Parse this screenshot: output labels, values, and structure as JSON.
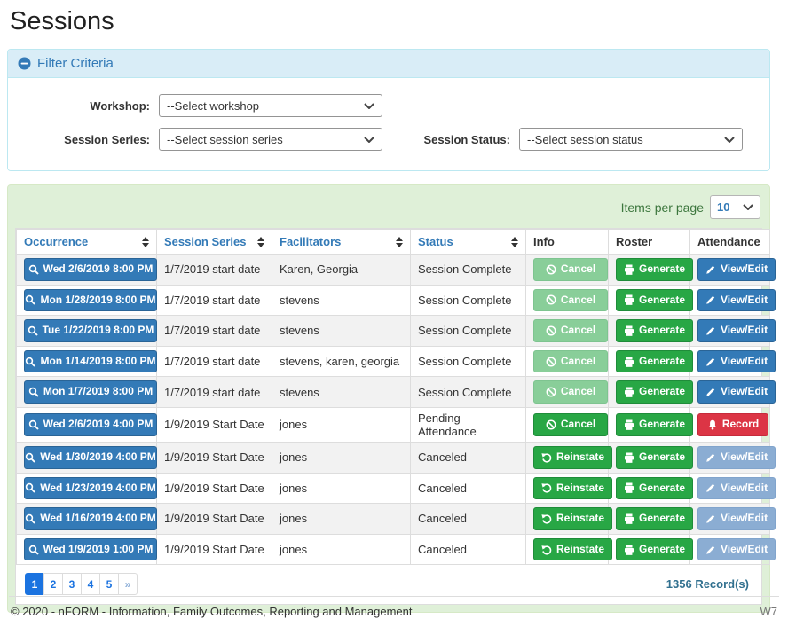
{
  "page": {
    "title": "Sessions"
  },
  "colors": {
    "accent_blue": "#337ab7",
    "action_green": "#28a745",
    "action_red": "#dc3545",
    "panel_green_bg": "#dff0d8",
    "filter_header_bg": "#d9edf7",
    "active_page_blue": "#1b73e0",
    "record_count_blue": "#31708f"
  },
  "icons": {
    "collapse": "minus-circle-icon",
    "dropdown": "chevron-down-icon",
    "occurrence": "search-icon",
    "cancel": "ban-icon",
    "generate": "printer-icon",
    "view_edit": "pencil-icon",
    "reinstate": "undo-icon",
    "record": "bell-icon",
    "sort": "sort-arrows-icon"
  },
  "filter": {
    "title": "Filter Criteria",
    "workshop_label": "Workshop:",
    "workshop_value": "--Select workshop",
    "series_label": "Session Series:",
    "series_value": "--Select session series",
    "status_label": "Session Status:",
    "status_value": "--Select session status"
  },
  "table": {
    "items_per_page_label": "Items per page",
    "items_per_page_value": "10",
    "columns": {
      "occurrence": "Occurrence",
      "series": "Session Series",
      "facilitators": "Facilitators",
      "status": "Status",
      "info": "Info",
      "roster": "Roster",
      "attendance": "Attendance"
    },
    "rows": [
      {
        "occurrence": "Wed 2/6/2019 8:00 PM",
        "series": "1/7/2019 start date",
        "facilitators": "Karen, Georgia",
        "status": "Session Complete",
        "info": "Cancel",
        "roster": "Generate",
        "attendance": "View/Edit"
      },
      {
        "occurrence": "Mon 1/28/2019 8:00 PM",
        "series": "1/7/2019 start date",
        "facilitators": "stevens",
        "status": "Session Complete",
        "info": "Cancel",
        "roster": "Generate",
        "attendance": "View/Edit"
      },
      {
        "occurrence": "Tue 1/22/2019 8:00 PM",
        "series": "1/7/2019 start date",
        "facilitators": "stevens",
        "status": "Session Complete",
        "info": "Cancel",
        "roster": "Generate",
        "attendance": "View/Edit"
      },
      {
        "occurrence": "Mon 1/14/2019 8:00 PM",
        "series": "1/7/2019 start date",
        "facilitators": "stevens, karen, georgia",
        "status": "Session Complete",
        "info": "Cancel",
        "roster": "Generate",
        "attendance": "View/Edit"
      },
      {
        "occurrence": "Mon 1/7/2019 8:00 PM",
        "series": "1/7/2019 start date",
        "facilitators": "stevens",
        "status": "Session Complete",
        "info": "Cancel",
        "roster": "Generate",
        "attendance": "View/Edit"
      },
      {
        "occurrence": "Wed 2/6/2019 4:00 PM",
        "series": "1/9/2019 Start Date",
        "facilitators": "jones",
        "status": "Pending Attendance",
        "info": "Cancel",
        "roster": "Generate",
        "attendance": "Record"
      },
      {
        "occurrence": "Wed 1/30/2019 4:00 PM",
        "series": "1/9/2019 Start Date",
        "facilitators": "jones",
        "status": "Canceled",
        "info": "Reinstate",
        "roster": "Generate",
        "attendance": "View/Edit"
      },
      {
        "occurrence": "Wed 1/23/2019 4:00 PM",
        "series": "1/9/2019 Start Date",
        "facilitators": "jones",
        "status": "Canceled",
        "info": "Reinstate",
        "roster": "Generate",
        "attendance": "View/Edit"
      },
      {
        "occurrence": "Wed 1/16/2019 4:00 PM",
        "series": "1/9/2019 Start Date",
        "facilitators": "jones",
        "status": "Canceled",
        "info": "Reinstate",
        "roster": "Generate",
        "attendance": "View/Edit"
      },
      {
        "occurrence": "Wed 1/9/2019 1:00 PM",
        "series": "1/9/2019 Start Date",
        "facilitators": "jones",
        "status": "Canceled",
        "info": "Reinstate",
        "roster": "Generate",
        "attendance": "View/Edit"
      }
    ],
    "record_count": "1356 Record(s)"
  },
  "pagination": {
    "pages": [
      "1",
      "2",
      "3",
      "4",
      "5"
    ],
    "next": "»"
  },
  "footer": {
    "copyright": "© 2020 - nFORM - Information, Family Outcomes, Reporting and Management",
    "right": "W7"
  }
}
